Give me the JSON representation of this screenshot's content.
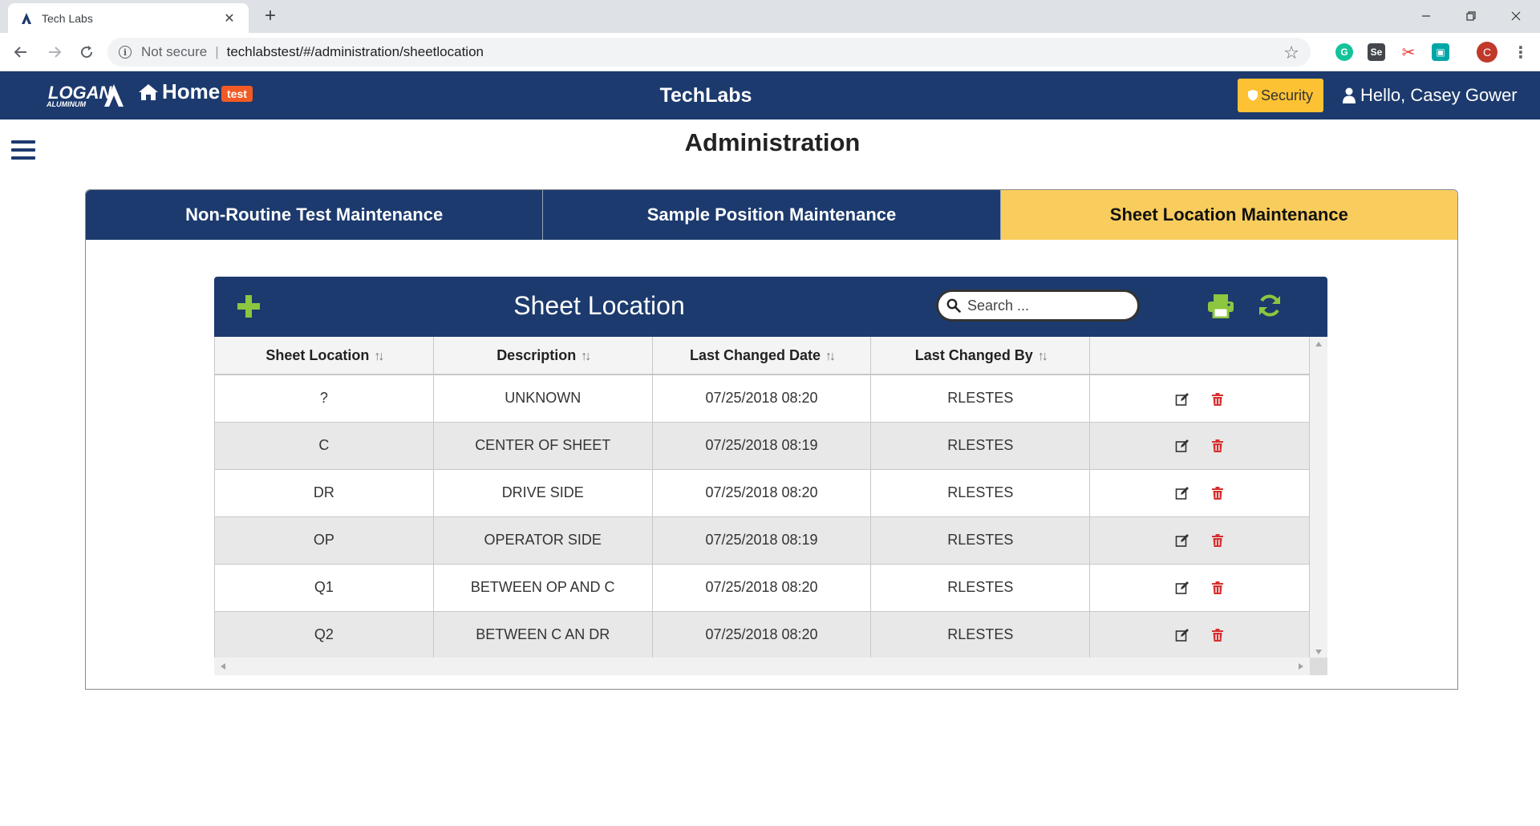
{
  "browser": {
    "tab_title": "Tech Labs",
    "not_secure": "Not secure",
    "url": "techlabstest/#/administration/sheetlocation",
    "extensions": [
      "grammarly-icon",
      "selenium-icon",
      "scissors-icon",
      "extension-icon"
    ],
    "profile_initial": "C"
  },
  "header": {
    "logo_text": "LOGAN",
    "logo_subtext": "ALUMINUM",
    "home_label": "Home",
    "env_badge": "test",
    "app_title": "TechLabs",
    "security_label": "Security",
    "greeting": "Hello, Casey Gower",
    "brand_color": "#1c3a6e",
    "accent_color": "#fdc234"
  },
  "page": {
    "title": "Administration",
    "tabs": [
      {
        "label": "Non-Routine Test Maintenance",
        "active": false
      },
      {
        "label": "Sample Position Maintenance",
        "active": false
      },
      {
        "label": "Sheet Location Maintenance",
        "active": true
      }
    ]
  },
  "grid": {
    "title": "Sheet Location",
    "search_placeholder": "Search ...",
    "columns": [
      "Sheet Location",
      "Description",
      "Last Changed Date",
      "Last Changed By",
      ""
    ],
    "rows": [
      {
        "location": "?",
        "description": "UNKNOWN",
        "date": "07/25/2018 08:20",
        "by": "RLESTES"
      },
      {
        "location": "C",
        "description": "CENTER OF SHEET",
        "date": "07/25/2018 08:19",
        "by": "RLESTES"
      },
      {
        "location": "DR",
        "description": "DRIVE SIDE",
        "date": "07/25/2018 08:20",
        "by": "RLESTES"
      },
      {
        "location": "OP",
        "description": "OPERATOR SIDE",
        "date": "07/25/2018 08:19",
        "by": "RLESTES"
      },
      {
        "location": "Q1",
        "description": "BETWEEN OP AND C",
        "date": "07/25/2018 08:20",
        "by": "RLESTES"
      },
      {
        "location": "Q2",
        "description": "BETWEEN C AN DR",
        "date": "07/25/2018 08:20",
        "by": "RLESTES"
      }
    ]
  }
}
